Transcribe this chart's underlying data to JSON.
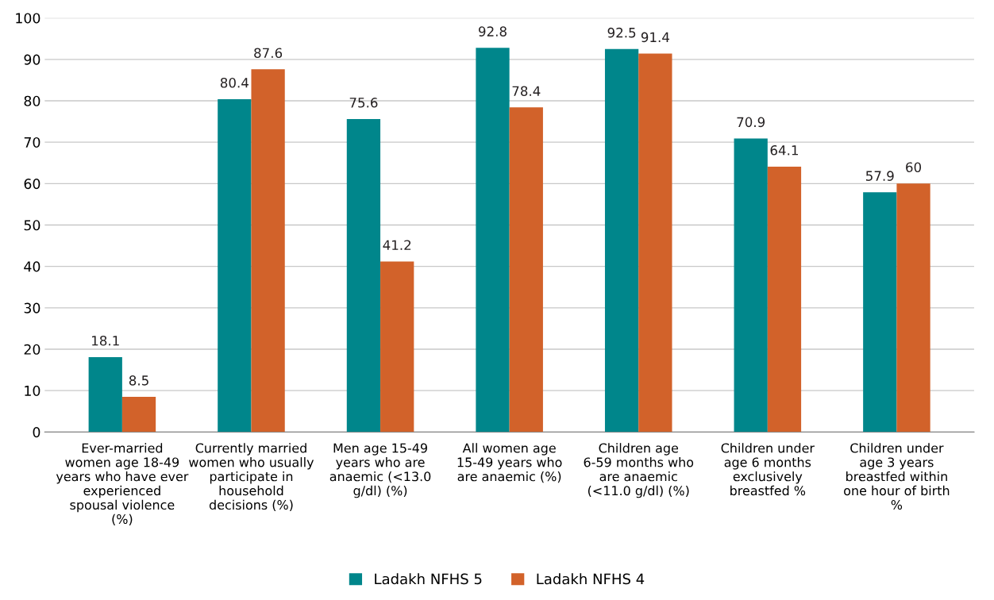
{
  "chart_data": {
    "type": "bar",
    "categories": [
      "Ever-married\nwomen age 18-49\nyears who have ever\nexperienced\nspousal violence\n(%)",
      "Currently married\nwomen who usually\nparticipate in\nhousehold\ndecisions (%)",
      "Men age 15-49\nyears who are\nanaemic (<13.0\ng/dl) (%)",
      "All women age\n15-49 years who\nare anaemic (%)",
      "Children age\n6-59 months who\nare anaemic\n(<11.0 g/dl) (%)",
      "Children under\nage 6 months\nexclusively\nbreastfed %",
      "Children under\nage 3 years\nbreastfed within\none hour of birth\n%"
    ],
    "series": [
      {
        "name": "Ladakh NFHS 5",
        "color": "#00868b",
        "values": [
          18.1,
          80.4,
          75.6,
          92.8,
          92.5,
          70.9,
          57.9
        ]
      },
      {
        "name": "Ladakh NFHS 4",
        "color": "#d2622a",
        "values": [
          8.5,
          87.6,
          41.2,
          78.4,
          91.4,
          64.1,
          60
        ]
      }
    ],
    "ylim": [
      0,
      100
    ],
    "yticks": [
      0,
      10,
      20,
      30,
      40,
      50,
      60,
      70,
      80,
      90,
      100
    ],
    "grid": "y",
    "legend": "bottom",
    "data_labels": true
  }
}
